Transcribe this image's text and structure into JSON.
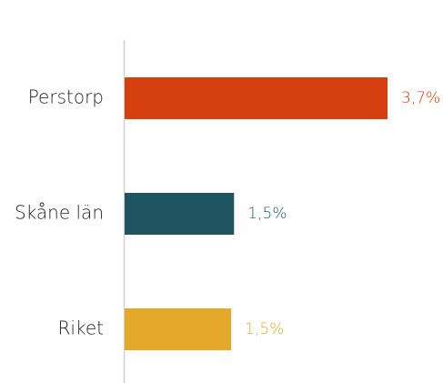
{
  "chart_data": {
    "type": "bar",
    "orientation": "horizontal",
    "categories": [
      "Perstorp",
      "Skåne län",
      "Riket"
    ],
    "values": [
      3.7,
      1.54,
      1.5
    ],
    "value_labels": [
      "3,7%",
      "1,5%",
      "1,5%"
    ],
    "colors": [
      "#d6400e",
      "#1f5560",
      "#e4a82a"
    ]
  }
}
